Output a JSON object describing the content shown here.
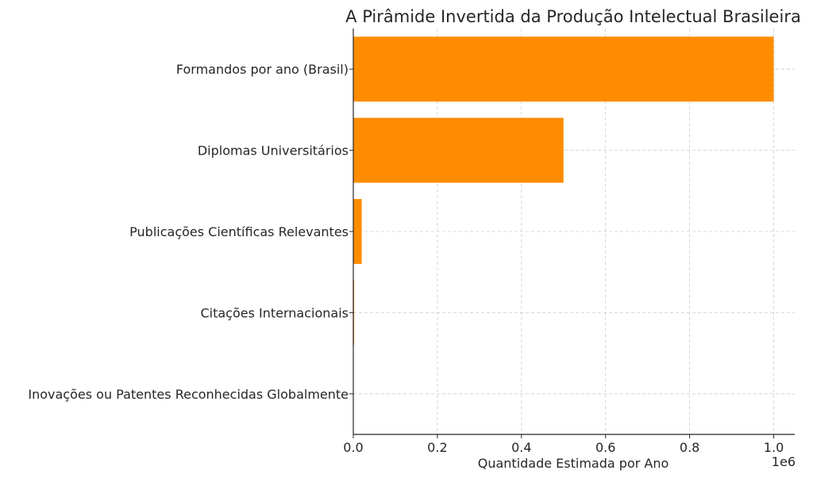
{
  "chart_data": {
    "type": "bar",
    "orientation": "horizontal",
    "title": "A Pirâmide Invertida da Produção Intelectual Brasileira",
    "xlabel": "Quantidade Estimada por Ano",
    "x_scale_label": "1e6",
    "ylabel": "",
    "categories": [
      "Formandos por ano (Brasil)",
      "Diplomas Universitários",
      "Publicações Científicas Relevantes",
      "Citações Internacionais",
      "Inovações ou Patentes Reconhecidas Globalmente"
    ],
    "values": [
      1000000,
      500000,
      20000,
      2000,
      100
    ],
    "xlim": [
      0,
      1050000
    ],
    "x_ticks": [
      0,
      200000,
      400000,
      600000,
      800000,
      1000000
    ],
    "x_tick_labels": [
      "0.0",
      "0.2",
      "0.4",
      "0.6",
      "0.8",
      "1.0"
    ],
    "grid": true,
    "bar_color": "#ff8c00"
  }
}
